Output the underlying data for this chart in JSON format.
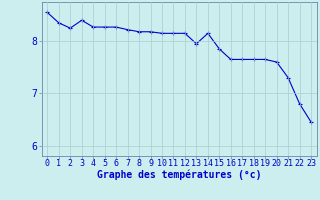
{
  "x": [
    0,
    1,
    2,
    3,
    4,
    5,
    6,
    7,
    8,
    9,
    10,
    11,
    12,
    13,
    14,
    15,
    16,
    17,
    18,
    19,
    20,
    21,
    22,
    23
  ],
  "y": [
    8.55,
    8.35,
    8.25,
    8.4,
    8.27,
    8.27,
    8.27,
    8.22,
    8.18,
    8.18,
    8.15,
    8.15,
    8.15,
    7.95,
    8.15,
    7.85,
    7.65,
    7.65,
    7.65,
    7.65,
    7.6,
    7.3,
    6.8,
    6.45
  ],
  "line_color": "#0000cc",
  "marker": "+",
  "markersize": 3,
  "linewidth": 0.8,
  "background_color": "#cceeee",
  "grid_color": "#aacccc",
  "xlabel": "Graphe des températures (°c)",
  "xlabel_fontsize": 7,
  "ylabel_ticks": [
    6,
    7,
    8
  ],
  "xlim": [
    -0.5,
    23.5
  ],
  "ylim": [
    5.8,
    8.75
  ],
  "tick_fontsize": 6,
  "title_color": "#0000cc",
  "spine_color": "#6688aa"
}
